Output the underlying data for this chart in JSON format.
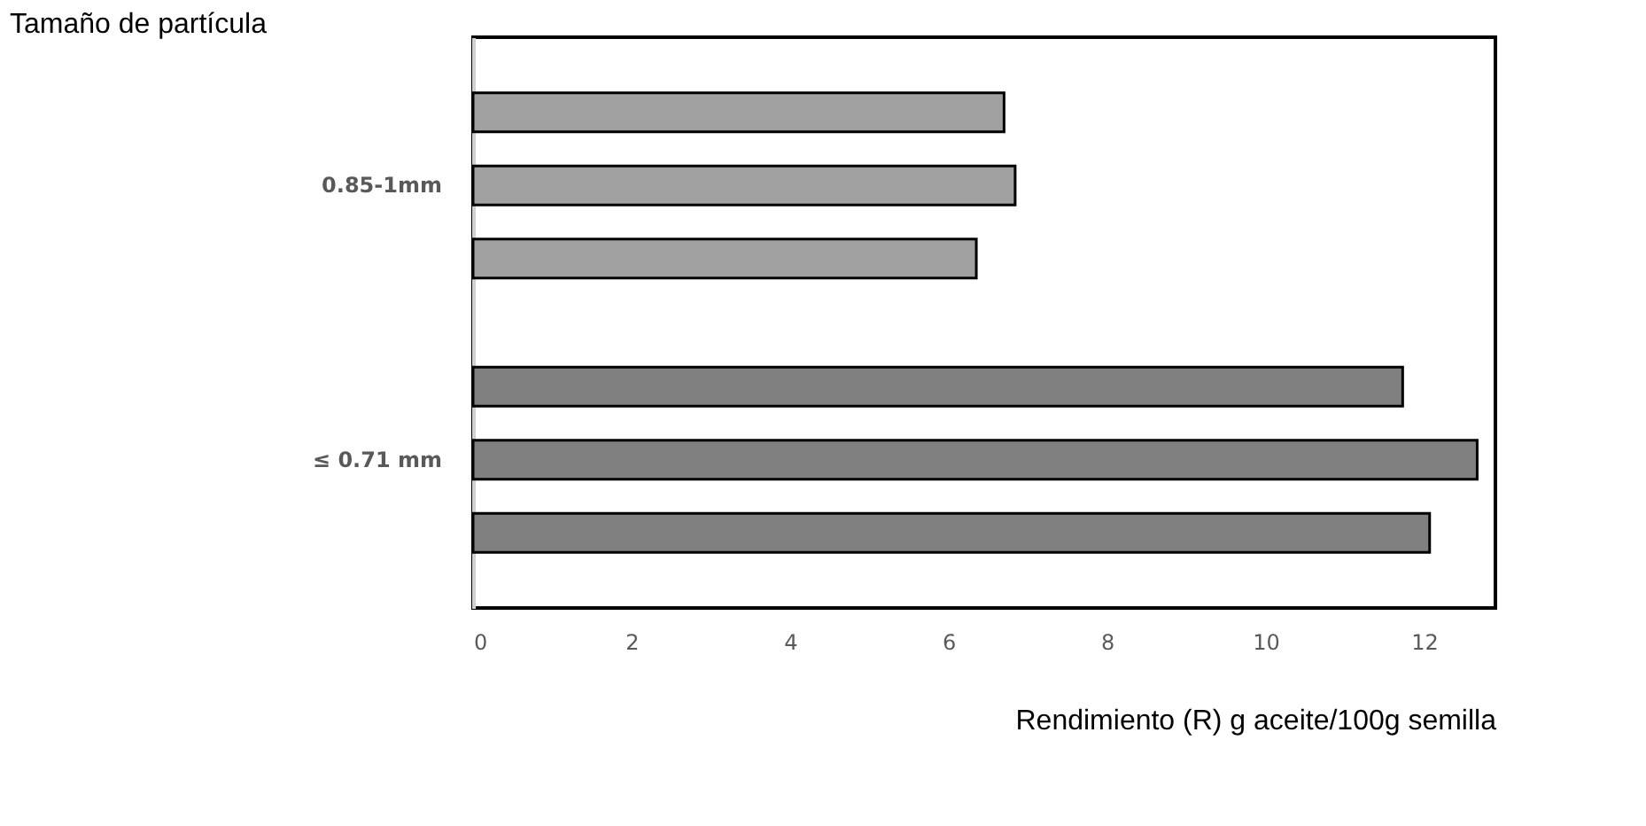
{
  "chart_data": {
    "type": "bar",
    "orientation": "horizontal",
    "ylabel": "Tamaño de partícula",
    "xlabel": "Rendimiento (R) g aceite/100g semilla",
    "categories": [
      "0.85-1mm",
      "≤ 0.71 mm"
    ],
    "series": [
      {
        "colors": [
          "#a0a0a0",
          "#808080"
        ],
        "values": [
          6.7,
          11.73
        ]
      },
      {
        "colors": [
          "#a0a0a0",
          "#808080"
        ],
        "values": [
          6.84,
          12.67
        ]
      },
      {
        "colors": [
          "#a0a0a0",
          "#808080"
        ],
        "values": [
          6.35,
          12.07
        ]
      }
    ],
    "xlim": [
      0,
      12.9
    ],
    "xticks": [
      0,
      2,
      4,
      6,
      8,
      10,
      12
    ],
    "grid": false
  }
}
